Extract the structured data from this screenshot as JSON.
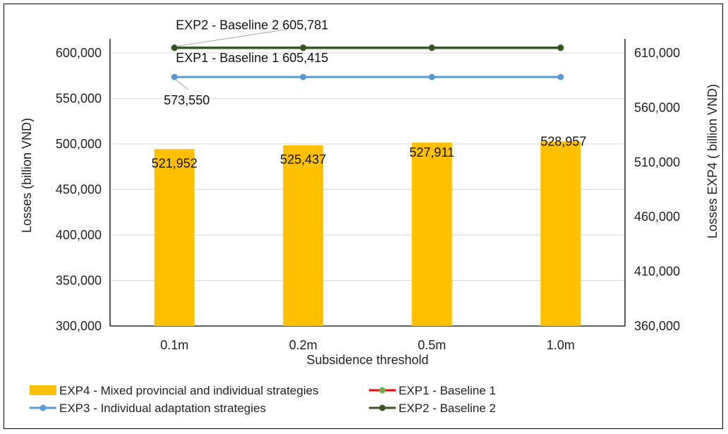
{
  "chart_data": {
    "type": "bar+line",
    "xlabel": "Subsidence threshold",
    "ylabel_left": "Losses (billion VND)",
    "ylabel_right": "Losses  EXP4 ( billion VND)",
    "categories": [
      "0.1m",
      "0.2m",
      "0.5m",
      "1.0m"
    ],
    "y_left": {
      "min": 300000,
      "max": 600000,
      "step": 50000,
      "ticks": [
        "300,000",
        "350,000",
        "400,000",
        "450,000",
        "500,000",
        "550,000",
        "600,000"
      ]
    },
    "y_right": {
      "min": 360000,
      "max": 610000,
      "step": 50000,
      "ticks": [
        "360,000",
        "410,000",
        "460,000",
        "510,000",
        "560,000",
        "610,000"
      ]
    },
    "grid": true,
    "legend_position": "bottom",
    "series": [
      {
        "name": "EXP4 - Mixed provincial and individual strategies",
        "kind": "bar",
        "axis": "right",
        "color": "#FFC000",
        "values": [
          521952,
          525437,
          527911,
          528957
        ],
        "labels": [
          "521,952",
          "525,437",
          "527,911",
          "528,957"
        ]
      },
      {
        "name": "EXP3 - Individual adaptation strategies",
        "kind": "line",
        "axis": "left",
        "color": "#5B9BD5",
        "values": [
          573550,
          573550,
          573550,
          573550
        ],
        "labels": [
          "573,550"
        ]
      },
      {
        "name": "EXP1 - Baseline 1",
        "kind": "line",
        "axis": "left",
        "color": "#FF0000",
        "marker_color": "#70AD47",
        "values": [
          605415,
          605415,
          605415,
          605415
        ],
        "labels": [
          "EXP1 - Baseline 1  605,415"
        ]
      },
      {
        "name": "EXP2 - Baseline 2",
        "kind": "line",
        "axis": "left",
        "color": "#375623",
        "marker_color": "#375623",
        "values": [
          605781,
          605781,
          605781,
          605781
        ],
        "labels": [
          "EXP2 - Baseline 2  605,781"
        ]
      }
    ]
  }
}
